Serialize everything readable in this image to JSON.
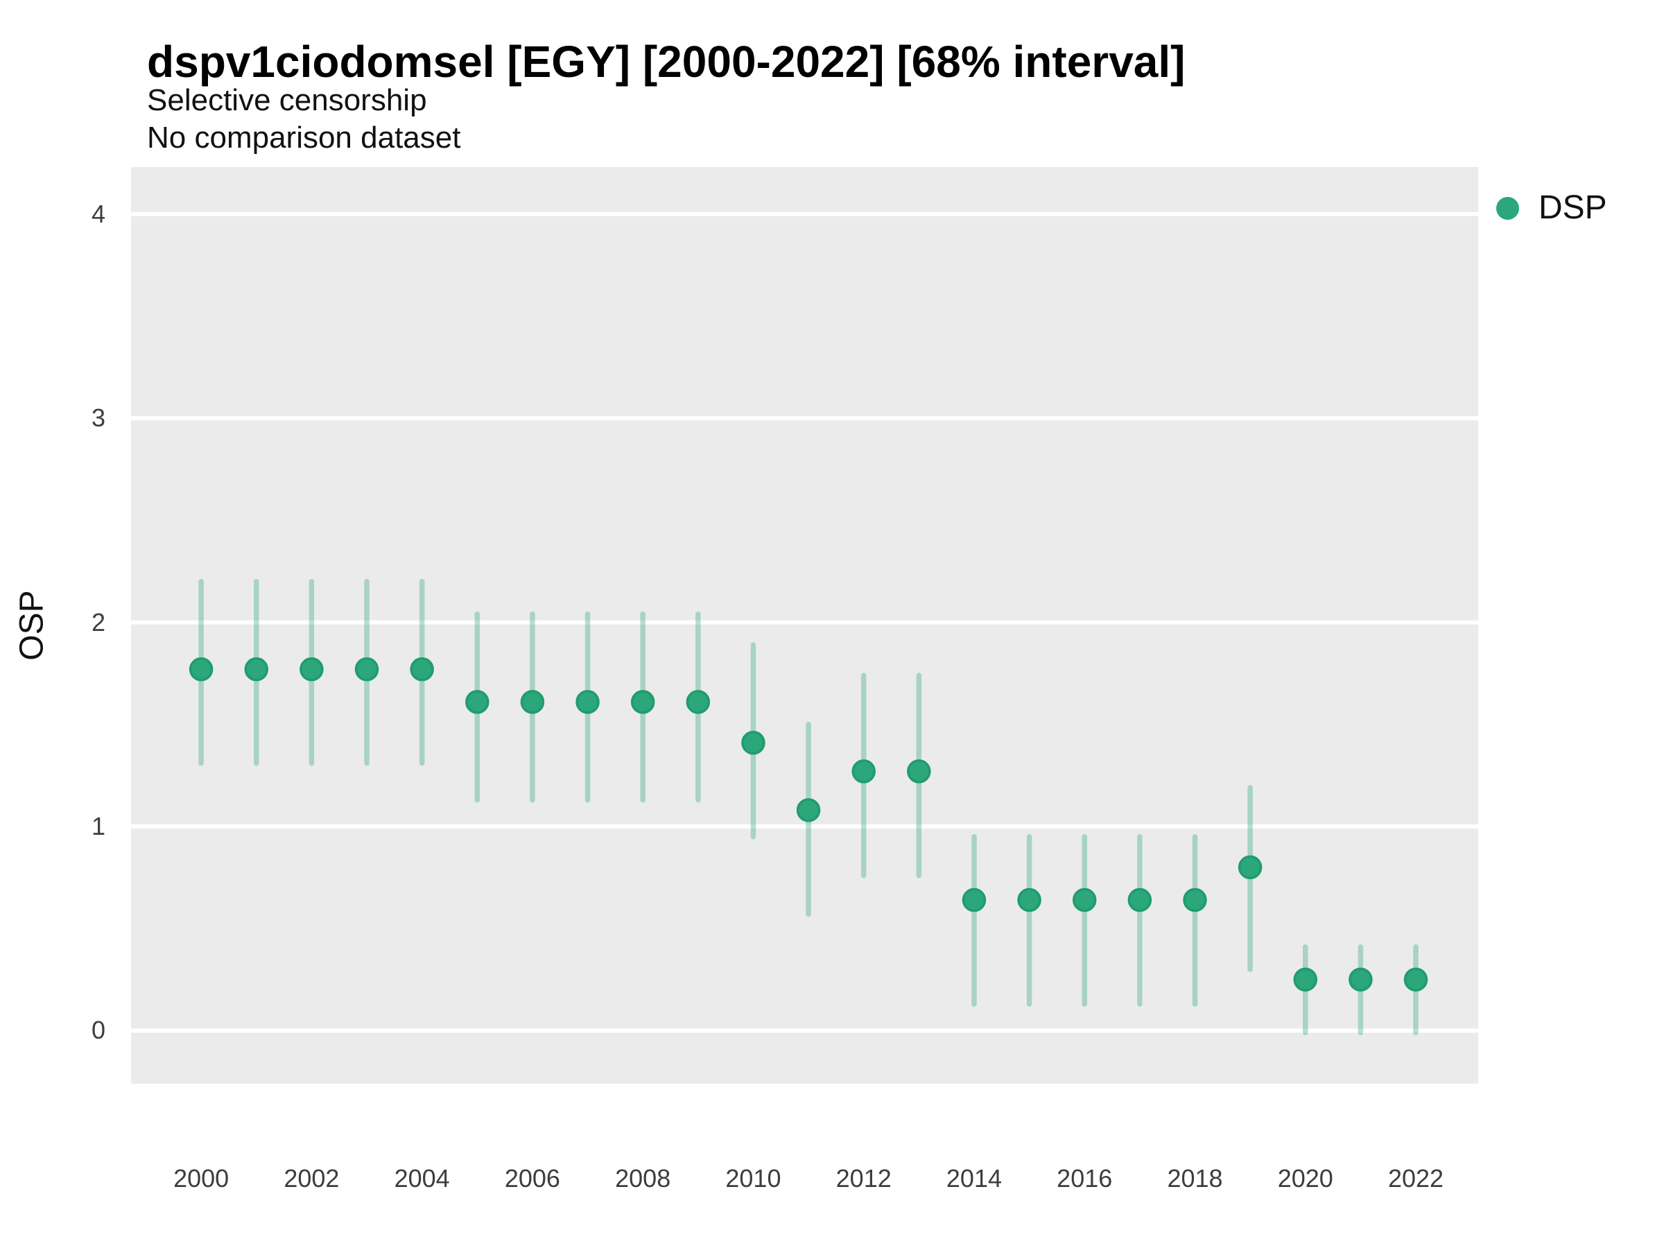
{
  "header": {
    "title": "dspv1ciodomsel [EGY] [2000-2022] [68% interval]",
    "subtitle1": "Selective censorship",
    "subtitle2": "No comparison dataset"
  },
  "axes": {
    "y_title": "OSP",
    "y_tick_labels": [
      "0",
      "1",
      "2",
      "3",
      "4"
    ],
    "x_tick_labels": [
      "2000",
      "2002",
      "2004",
      "2006",
      "2008",
      "2010",
      "2012",
      "2014",
      "2016",
      "2018",
      "2020",
      "2022"
    ]
  },
  "legend": {
    "items": [
      {
        "label": "DSP",
        "color": "#2BA77B"
      }
    ],
    "position": "right"
  },
  "colors": {
    "panel_background": "#EBEBEB",
    "gridline": "#FFFFFF",
    "point_fill": "#2BA77B",
    "point_stroke": "#1F9C6F",
    "interval_stroke": "#2BA77B",
    "interval_alpha": 0.35,
    "tick_text": "#3d3d3d",
    "title_text": "#000000"
  },
  "chart_data": {
    "type": "scatter",
    "subtype": "pointrange",
    "title": "dspv1ciodomsel [EGY] [2000-2022] [68% interval]",
    "subtitle": "Selective censorship / No comparison dataset",
    "xlabel": "",
    "ylabel": "OSP",
    "interval": "68%",
    "grid": "horizontal-major-only",
    "legend_position": "right",
    "xlim": [
      1998.73,
      2023.13
    ],
    "ylim": [
      -0.26,
      4.23
    ],
    "y_ticks": [
      0,
      1,
      2,
      3,
      4
    ],
    "x_ticks": [
      2000,
      2002,
      2004,
      2006,
      2008,
      2010,
      2012,
      2014,
      2016,
      2018,
      2020,
      2022
    ],
    "x": [
      2000,
      2001,
      2002,
      2003,
      2004,
      2005,
      2006,
      2007,
      2008,
      2009,
      2010,
      2011,
      2012,
      2013,
      2014,
      2015,
      2016,
      2017,
      2018,
      2019,
      2020,
      2021,
      2022
    ],
    "series": [
      {
        "name": "DSP",
        "values": [
          1.77,
          1.77,
          1.77,
          1.77,
          1.77,
          1.61,
          1.61,
          1.61,
          1.61,
          1.61,
          1.41,
          1.08,
          1.27,
          1.27,
          0.64,
          0.64,
          0.64,
          0.64,
          0.64,
          0.8,
          0.25,
          0.25,
          0.25
        ],
        "lo": [
          1.31,
          1.31,
          1.31,
          1.31,
          1.31,
          1.13,
          1.13,
          1.13,
          1.13,
          1.13,
          0.95,
          0.57,
          0.76,
          0.76,
          0.13,
          0.13,
          0.13,
          0.13,
          0.13,
          0.3,
          -0.01,
          -0.01,
          -0.01
        ],
        "hi": [
          2.2,
          2.2,
          2.2,
          2.2,
          2.2,
          2.04,
          2.04,
          2.04,
          2.04,
          2.04,
          1.89,
          1.5,
          1.74,
          1.74,
          0.95,
          0.95,
          0.95,
          0.95,
          0.95,
          1.19,
          0.41,
          0.41,
          0.41
        ]
      }
    ]
  }
}
